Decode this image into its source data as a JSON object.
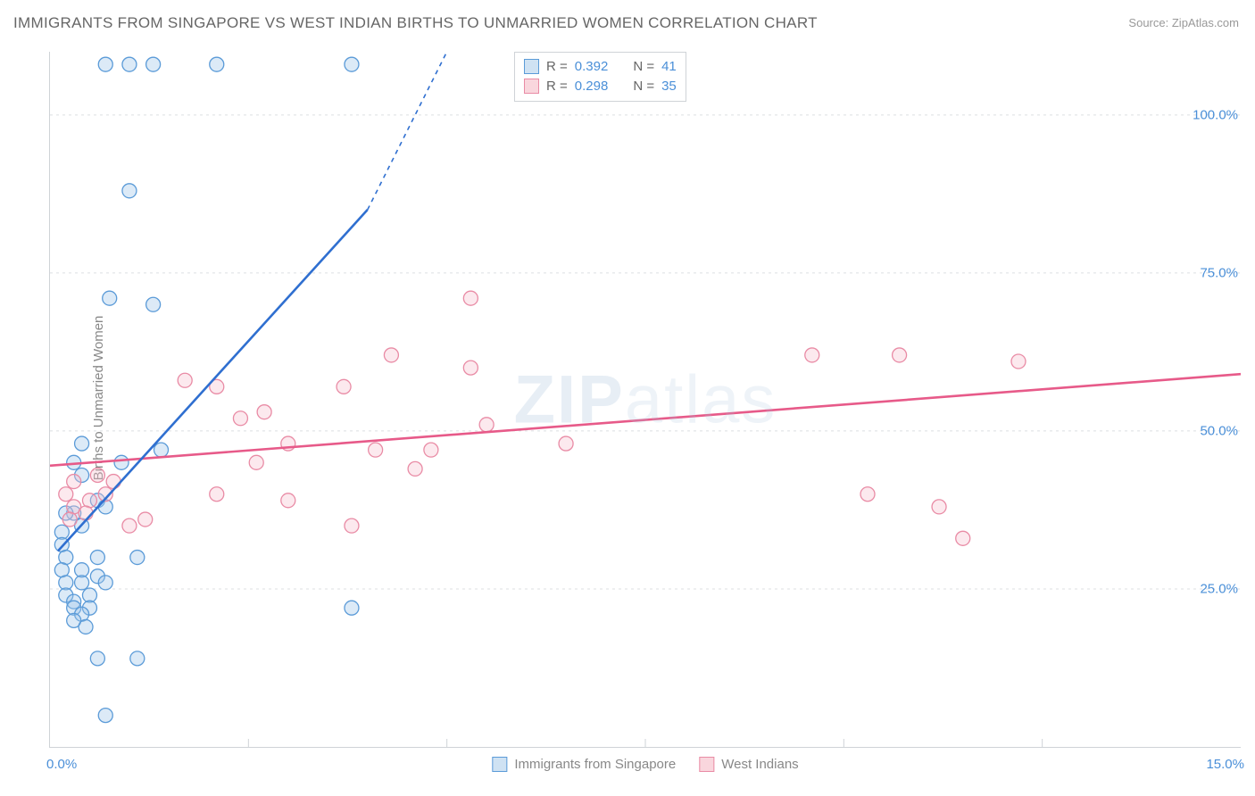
{
  "title": "IMMIGRANTS FROM SINGAPORE VS WEST INDIAN BIRTHS TO UNMARRIED WOMEN CORRELATION CHART",
  "source_label": "Source:",
  "source_value": "ZipAtlas.com",
  "ylabel": "Births to Unmarried Women",
  "watermark": {
    "bold": "ZIP",
    "light": "atlas"
  },
  "chart": {
    "type": "scatter",
    "xlim": [
      0,
      15
    ],
    "ylim": [
      0,
      110
    ],
    "x_ticks": [
      0,
      15
    ],
    "x_tick_labels": [
      "0.0%",
      "15.0%"
    ],
    "x_minor_ticks": [
      2.5,
      5,
      7.5,
      10,
      12.5
    ],
    "y_gridlines": [
      25,
      50,
      75,
      100
    ],
    "y_tick_labels": [
      "25.0%",
      "50.0%",
      "75.0%",
      "100.0%"
    ],
    "marker_radius": 8,
    "background_color": "#ffffff",
    "grid_color": "#dcdfe2",
    "axis_color": "#cfd3d7",
    "tick_label_color": "#4a8fd8",
    "series": [
      {
        "name": "Immigrants from Singapore",
        "color_fill": "#9cc3e8",
        "color_stroke": "#5b9bd8",
        "trend_color": "#2f6fd0",
        "r": 0.392,
        "n": 41,
        "trend_line": {
          "x1": 0.1,
          "y1": 31,
          "x2": 4.0,
          "y2": 85,
          "x3": 5.0,
          "y3": 110
        },
        "points": [
          [
            0.7,
            108
          ],
          [
            1.0,
            108
          ],
          [
            1.3,
            108
          ],
          [
            2.1,
            108
          ],
          [
            3.8,
            108
          ],
          [
            1.0,
            88
          ],
          [
            0.75,
            71
          ],
          [
            1.3,
            70
          ],
          [
            0.4,
            48
          ],
          [
            1.4,
            47
          ],
          [
            0.9,
            45
          ],
          [
            0.3,
            45
          ],
          [
            0.4,
            43
          ],
          [
            0.6,
            39
          ],
          [
            0.7,
            38
          ],
          [
            0.3,
            37
          ],
          [
            0.4,
            35
          ],
          [
            0.15,
            34
          ],
          [
            0.15,
            32
          ],
          [
            0.2,
            30
          ],
          [
            0.6,
            30
          ],
          [
            1.1,
            30
          ],
          [
            0.15,
            28
          ],
          [
            0.4,
            28
          ],
          [
            0.6,
            27
          ],
          [
            0.2,
            26
          ],
          [
            0.4,
            26
          ],
          [
            0.7,
            26
          ],
          [
            0.2,
            24
          ],
          [
            0.5,
            24
          ],
          [
            0.3,
            23
          ],
          [
            0.5,
            22
          ],
          [
            0.3,
            22
          ],
          [
            0.4,
            21
          ],
          [
            3.8,
            22
          ],
          [
            0.3,
            20
          ],
          [
            0.45,
            19
          ],
          [
            0.6,
            14
          ],
          [
            1.1,
            14
          ],
          [
            0.7,
            5
          ],
          [
            0.2,
            37
          ]
        ]
      },
      {
        "name": "West Indians",
        "color_fill": "#f6c1cf",
        "color_stroke": "#e98ba5",
        "trend_color": "#e75a89",
        "r": 0.298,
        "n": 35,
        "trend_line": {
          "x1": 0,
          "y1": 44.5,
          "x2": 15,
          "y2": 59
        },
        "points": [
          [
            5.3,
            71
          ],
          [
            4.3,
            62
          ],
          [
            5.3,
            60
          ],
          [
            9.6,
            62
          ],
          [
            10.7,
            62
          ],
          [
            12.2,
            61
          ],
          [
            1.7,
            58
          ],
          [
            2.1,
            57
          ],
          [
            3.7,
            57
          ],
          [
            2.7,
            53
          ],
          [
            2.4,
            52
          ],
          [
            5.5,
            51
          ],
          [
            6.5,
            48
          ],
          [
            3.0,
            48
          ],
          [
            4.1,
            47
          ],
          [
            4.8,
            47
          ],
          [
            2.6,
            45
          ],
          [
            4.6,
            44
          ],
          [
            0.6,
            43
          ],
          [
            0.3,
            42
          ],
          [
            0.8,
            42
          ],
          [
            0.2,
            40
          ],
          [
            0.7,
            40
          ],
          [
            0.5,
            39
          ],
          [
            0.3,
            38
          ],
          [
            0.45,
            37
          ],
          [
            0.25,
            36
          ],
          [
            2.1,
            40
          ],
          [
            3.0,
            39
          ],
          [
            3.8,
            35
          ],
          [
            10.3,
            40
          ],
          [
            11.2,
            38
          ],
          [
            1.0,
            35
          ],
          [
            1.2,
            36
          ],
          [
            11.5,
            33
          ]
        ]
      }
    ],
    "stats_box": {
      "rows": [
        {
          "swatch": "blue",
          "r_label": "R =",
          "r_value": "0.392",
          "n_label": "N =",
          "n_value": "41"
        },
        {
          "swatch": "pink",
          "r_label": "R =",
          "r_value": "0.298",
          "n_label": "N =",
          "n_value": "35"
        }
      ]
    },
    "bottom_legend": [
      {
        "swatch": "blue",
        "label": "Immigrants from Singapore"
      },
      {
        "swatch": "pink",
        "label": "West Indians"
      }
    ]
  }
}
